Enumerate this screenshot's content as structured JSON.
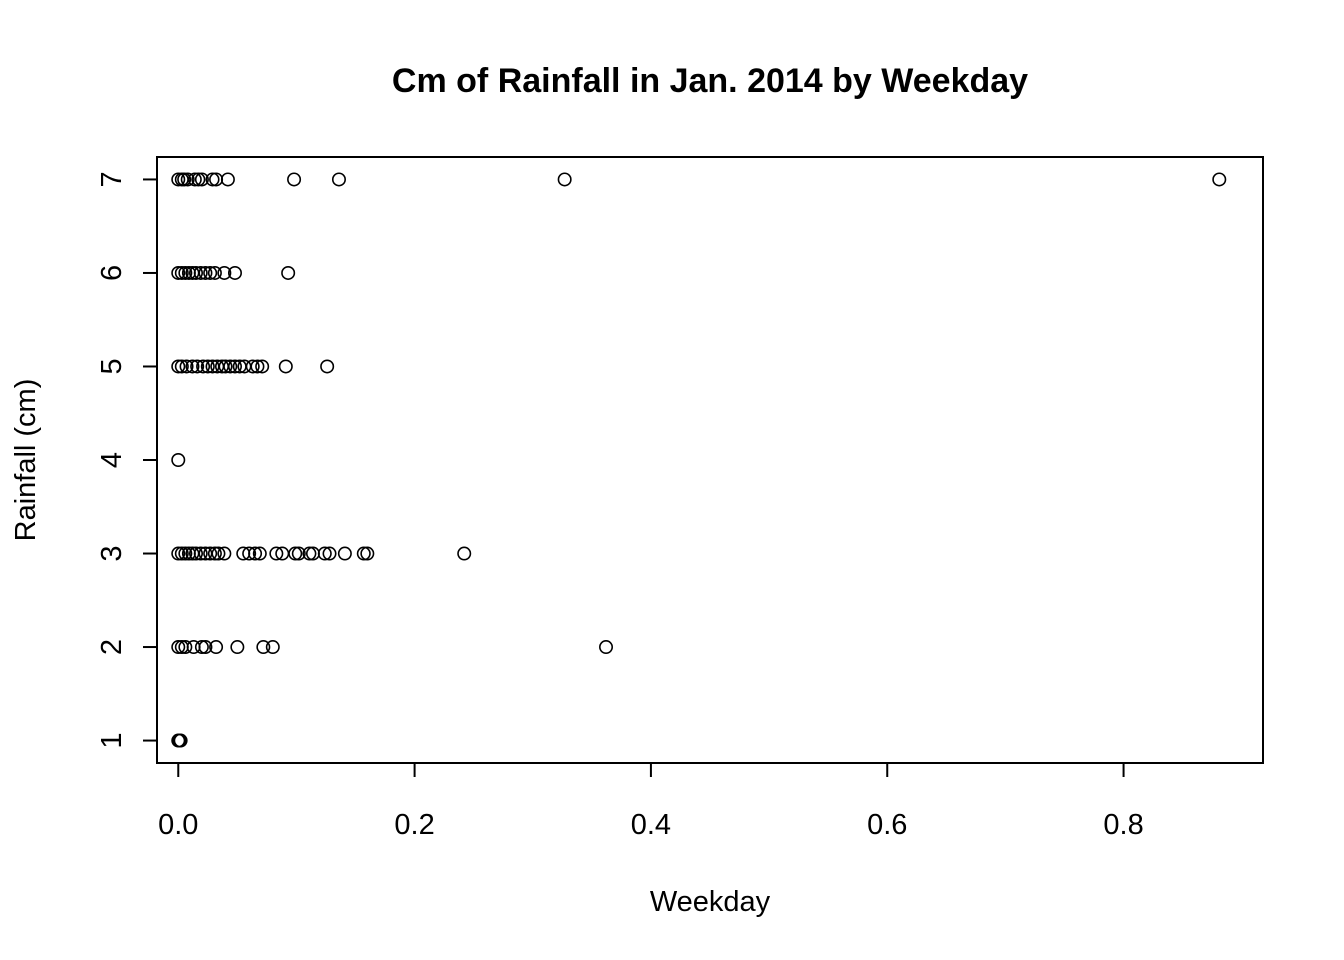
{
  "chart_data": {
    "type": "scatter",
    "title": "Cm of Rainfall in Jan. 2014 by Weekday",
    "xlabel": "Weekday",
    "ylabel": "Rainfall (cm)",
    "xlim": [
      -0.018,
      0.918
    ],
    "ylim": [
      0.76,
      7.24
    ],
    "xticks": [
      0.0,
      0.2,
      0.4,
      0.6,
      0.8
    ],
    "xtick_labels": [
      "0.0",
      "0.2",
      "0.4",
      "0.6",
      "0.8"
    ],
    "yticks": [
      1,
      2,
      3,
      4,
      5,
      6,
      7
    ],
    "ytick_labels": [
      "1",
      "2",
      "3",
      "4",
      "5",
      "6",
      "7"
    ],
    "grid": false,
    "marker": "open-circle",
    "points": [
      {
        "x": 0.0,
        "y": 7
      },
      {
        "x": 0.003,
        "y": 7
      },
      {
        "x": 0.005,
        "y": 7
      },
      {
        "x": 0.008,
        "y": 7
      },
      {
        "x": 0.014,
        "y": 7
      },
      {
        "x": 0.017,
        "y": 7
      },
      {
        "x": 0.02,
        "y": 7
      },
      {
        "x": 0.029,
        "y": 7
      },
      {
        "x": 0.032,
        "y": 7
      },
      {
        "x": 0.042,
        "y": 7
      },
      {
        "x": 0.098,
        "y": 7
      },
      {
        "x": 0.136,
        "y": 7
      },
      {
        "x": 0.327,
        "y": 7
      },
      {
        "x": 0.881,
        "y": 7
      },
      {
        "x": 0.0,
        "y": 6
      },
      {
        "x": 0.003,
        "y": 6
      },
      {
        "x": 0.006,
        "y": 6
      },
      {
        "x": 0.009,
        "y": 6
      },
      {
        "x": 0.012,
        "y": 6
      },
      {
        "x": 0.015,
        "y": 6
      },
      {
        "x": 0.019,
        "y": 6
      },
      {
        "x": 0.023,
        "y": 6
      },
      {
        "x": 0.027,
        "y": 6
      },
      {
        "x": 0.031,
        "y": 6
      },
      {
        "x": 0.039,
        "y": 6
      },
      {
        "x": 0.048,
        "y": 6
      },
      {
        "x": 0.093,
        "y": 6
      },
      {
        "x": 0.0,
        "y": 5
      },
      {
        "x": 0.003,
        "y": 5
      },
      {
        "x": 0.007,
        "y": 5
      },
      {
        "x": 0.012,
        "y": 5
      },
      {
        "x": 0.016,
        "y": 5
      },
      {
        "x": 0.021,
        "y": 5
      },
      {
        "x": 0.025,
        "y": 5
      },
      {
        "x": 0.029,
        "y": 5
      },
      {
        "x": 0.033,
        "y": 5
      },
      {
        "x": 0.037,
        "y": 5
      },
      {
        "x": 0.04,
        "y": 5
      },
      {
        "x": 0.044,
        "y": 5
      },
      {
        "x": 0.048,
        "y": 5
      },
      {
        "x": 0.052,
        "y": 5
      },
      {
        "x": 0.056,
        "y": 5
      },
      {
        "x": 0.063,
        "y": 5
      },
      {
        "x": 0.067,
        "y": 5
      },
      {
        "x": 0.071,
        "y": 5
      },
      {
        "x": 0.091,
        "y": 5
      },
      {
        "x": 0.126,
        "y": 5
      },
      {
        "x": 0.0,
        "y": 4
      },
      {
        "x": 0.0,
        "y": 3
      },
      {
        "x": 0.003,
        "y": 3
      },
      {
        "x": 0.006,
        "y": 3
      },
      {
        "x": 0.009,
        "y": 3
      },
      {
        "x": 0.012,
        "y": 3
      },
      {
        "x": 0.015,
        "y": 3
      },
      {
        "x": 0.019,
        "y": 3
      },
      {
        "x": 0.023,
        "y": 3
      },
      {
        "x": 0.027,
        "y": 3
      },
      {
        "x": 0.031,
        "y": 3
      },
      {
        "x": 0.034,
        "y": 3
      },
      {
        "x": 0.039,
        "y": 3
      },
      {
        "x": 0.055,
        "y": 3
      },
      {
        "x": 0.06,
        "y": 3
      },
      {
        "x": 0.065,
        "y": 3
      },
      {
        "x": 0.069,
        "y": 3
      },
      {
        "x": 0.083,
        "y": 3
      },
      {
        "x": 0.088,
        "y": 3
      },
      {
        "x": 0.099,
        "y": 3
      },
      {
        "x": 0.102,
        "y": 3
      },
      {
        "x": 0.111,
        "y": 3
      },
      {
        "x": 0.114,
        "y": 3
      },
      {
        "x": 0.124,
        "y": 3
      },
      {
        "x": 0.128,
        "y": 3
      },
      {
        "x": 0.141,
        "y": 3
      },
      {
        "x": 0.157,
        "y": 3
      },
      {
        "x": 0.16,
        "y": 3
      },
      {
        "x": 0.242,
        "y": 3
      },
      {
        "x": 0.0,
        "y": 2
      },
      {
        "x": 0.003,
        "y": 2
      },
      {
        "x": 0.006,
        "y": 2
      },
      {
        "x": 0.013,
        "y": 2
      },
      {
        "x": 0.02,
        "y": 2
      },
      {
        "x": 0.023,
        "y": 2
      },
      {
        "x": 0.032,
        "y": 2
      },
      {
        "x": 0.05,
        "y": 2
      },
      {
        "x": 0.072,
        "y": 2
      },
      {
        "x": 0.08,
        "y": 2
      },
      {
        "x": 0.362,
        "y": 2
      },
      {
        "x": 0.0,
        "y": 1
      },
      {
        "x": 0.001,
        "y": 1
      },
      {
        "x": 0.002,
        "y": 1
      }
    ]
  }
}
